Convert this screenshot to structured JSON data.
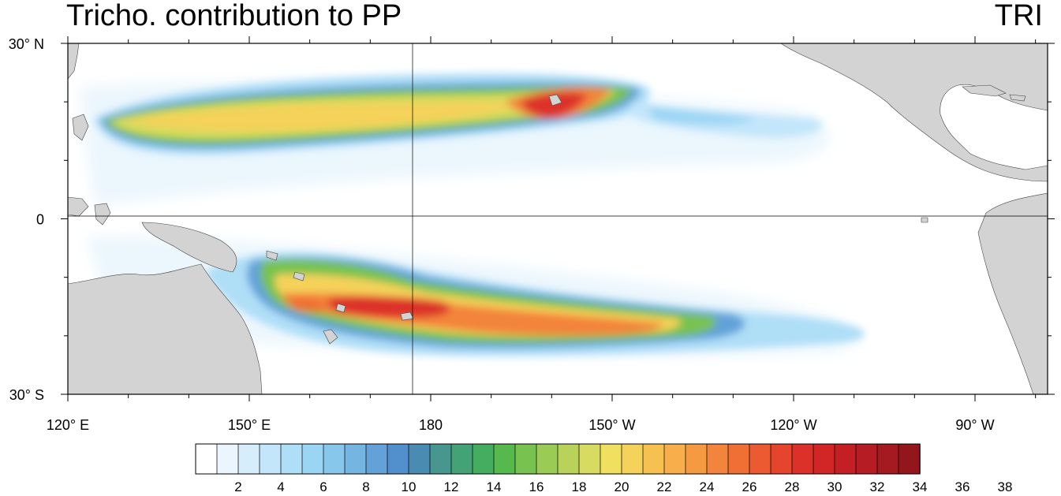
{
  "title_left": "Tricho. contribution to PP",
  "title_right": "TRI",
  "map": {
    "lon_range": [
      120,
      282
    ],
    "lat_range": [
      -30,
      30
    ],
    "x_ticks": [
      {
        "lon": 120,
        "label": "120° E"
      },
      {
        "lon": 150,
        "label": "150° E"
      },
      {
        "lon": 180,
        "label": "180"
      },
      {
        "lon": 210,
        "label": "150° W"
      },
      {
        "lon": 240,
        "label": "120° W"
      },
      {
        "lon": 270,
        "label": "90° W"
      }
    ],
    "y_ticks": [
      {
        "lat": 30,
        "label": "30° N"
      },
      {
        "lat": 0,
        "label": "0"
      },
      {
        "lat": -30,
        "label": "30° S"
      }
    ],
    "land_color": "#d3d3d3",
    "ocean_color": "#ffffff"
  },
  "colorbar": {
    "labels": [
      "2",
      "4",
      "6",
      "8",
      "10",
      "12",
      "14",
      "16",
      "18",
      "20",
      "22",
      "24",
      "26",
      "28",
      "30",
      "32",
      "34",
      "36",
      "38"
    ],
    "colors": [
      "#ffffff",
      "#eaf5fd",
      "#d6edfb",
      "#c3e6fa",
      "#afdef7",
      "#9bd5f4",
      "#87c7ec",
      "#74b5e2",
      "#62a2d8",
      "#528fcd",
      "#4a8bb2",
      "#47978f",
      "#44a376",
      "#45ad60",
      "#55b94e",
      "#78c250",
      "#9acb54",
      "#b9d35a",
      "#d7db5f",
      "#f0e060",
      "#f5d25a",
      "#f7c151",
      "#f8ae4a",
      "#f69a42",
      "#f3843b",
      "#ef6f35",
      "#eb5a30",
      "#e5452c",
      "#dc3129",
      "#d22526",
      "#c41f25",
      "#b51c23",
      "#a51920",
      "#94161d"
    ]
  }
}
